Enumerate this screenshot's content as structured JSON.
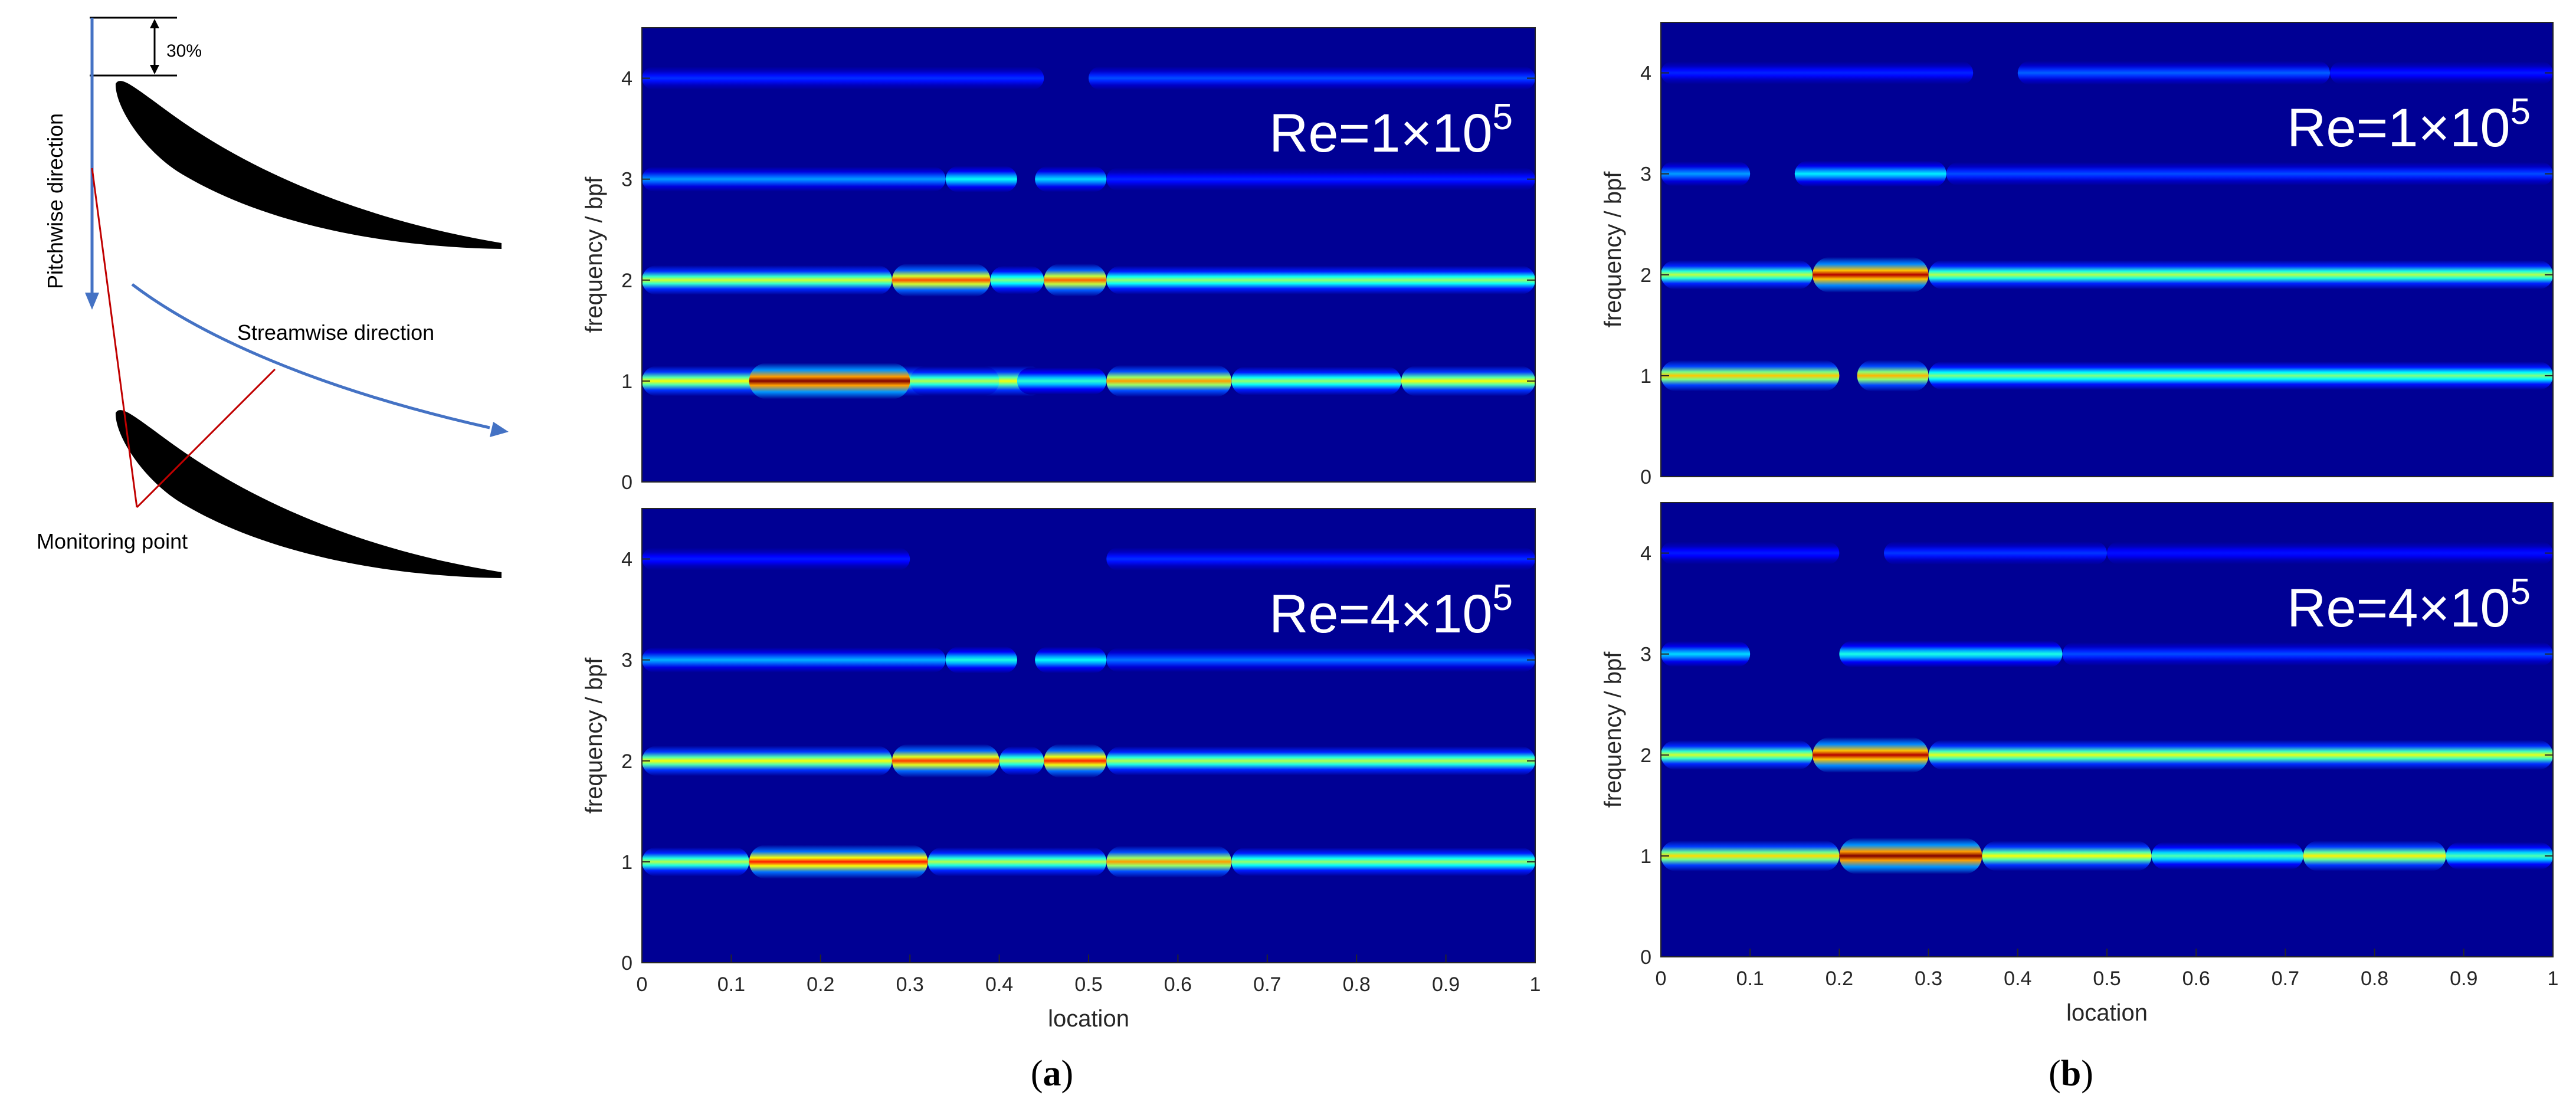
{
  "diagram": {
    "percent_label": "30%",
    "pitchwise_label": "Pitchwise direction",
    "streamwise_label": "Streamwise direction",
    "monitoring_label": "Monitoring point",
    "colors": {
      "blade": "#000000",
      "arrow": "#4472C4",
      "leader": "#C00000",
      "dim": "#000000"
    }
  },
  "chart_data": [
    {
      "type": "heatmap",
      "panel": "a",
      "annotation": "Re=1×10^5",
      "xlabel": "",
      "ylabel": "frequency / bpf",
      "xlim": [
        0,
        1
      ],
      "ylim": [
        0,
        4.5
      ],
      "yticks": [
        0,
        1,
        2,
        3,
        4
      ],
      "colormap": "jet",
      "bands": [
        {
          "freq": 1,
          "segments": [
            [
              0,
              0.45,
              0.62
            ],
            [
              0.12,
              0.3,
              1.0
            ],
            [
              0.3,
              0.4,
              0.55
            ],
            [
              0.42,
              0.52,
              0.42
            ],
            [
              0.52,
              0.66,
              0.72
            ],
            [
              0.66,
              0.85,
              0.52
            ],
            [
              0.85,
              1,
              0.62
            ]
          ]
        },
        {
          "freq": 2,
          "segments": [
            [
              0,
              0.28,
              0.58
            ],
            [
              0.28,
              0.39,
              0.8
            ],
            [
              0.39,
              0.45,
              0.5
            ],
            [
              0.45,
              0.52,
              0.78
            ],
            [
              0.52,
              1,
              0.52
            ]
          ]
        },
        {
          "freq": 3,
          "segments": [
            [
              0,
              0.34,
              0.28
            ],
            [
              0.34,
              0.42,
              0.38
            ],
            [
              0.44,
              0.52,
              0.34
            ],
            [
              0.52,
              1,
              0.16
            ]
          ]
        },
        {
          "freq": 4,
          "segments": [
            [
              0,
              0.45,
              0.17
            ],
            [
              0.5,
              1,
              0.2
            ]
          ]
        }
      ]
    },
    {
      "type": "heatmap",
      "panel": "a",
      "annotation": "Re=4×10^5",
      "xlabel": "location",
      "ylabel": "frequency / bpf",
      "xlim": [
        0,
        1
      ],
      "ylim": [
        0,
        4.5
      ],
      "xticks": [
        "0",
        "0.1",
        "0.2",
        "0.3",
        "0.4",
        "0.5",
        "0.6",
        "0.7",
        "0.8",
        "0.9",
        "1"
      ],
      "yticks": [
        0,
        1,
        2,
        3,
        4
      ],
      "colormap": "jet",
      "bands": [
        {
          "freq": 1,
          "segments": [
            [
              0,
              0.12,
              0.55
            ],
            [
              0.12,
              0.32,
              0.85
            ],
            [
              0.32,
              0.52,
              0.55
            ],
            [
              0.52,
              0.66,
              0.72
            ],
            [
              0.66,
              1,
              0.52
            ]
          ]
        },
        {
          "freq": 2,
          "segments": [
            [
              0,
              0.28,
              0.62
            ],
            [
              0.28,
              0.4,
              0.82
            ],
            [
              0.4,
              0.45,
              0.55
            ],
            [
              0.45,
              0.52,
              0.84
            ],
            [
              0.52,
              1,
              0.55
            ]
          ]
        },
        {
          "freq": 3,
          "segments": [
            [
              0,
              0.34,
              0.3
            ],
            [
              0.34,
              0.42,
              0.4
            ],
            [
              0.44,
              0.52,
              0.38
            ],
            [
              0.52,
              1,
              0.24
            ]
          ]
        },
        {
          "freq": 4,
          "segments": [
            [
              0,
              0.3,
              0.15
            ],
            [
              0.52,
              1,
              0.17
            ]
          ]
        }
      ]
    },
    {
      "type": "heatmap",
      "panel": "b",
      "annotation": "Re=1×10^5",
      "xlabel": "",
      "ylabel": "frequency / bpf",
      "xlim": [
        0,
        1
      ],
      "ylim": [
        0,
        4.5
      ],
      "yticks": [
        0,
        1,
        2,
        3,
        4
      ],
      "colormap": "jet",
      "bands": [
        {
          "freq": 1,
          "segments": [
            [
              0,
              0.2,
              0.68
            ],
            [
              0.22,
              0.3,
              0.7
            ],
            [
              0.3,
              1,
              0.5
            ]
          ]
        },
        {
          "freq": 2,
          "segments": [
            [
              0,
              0.17,
              0.56
            ],
            [
              0.17,
              0.3,
              0.95
            ],
            [
              0.3,
              1,
              0.55
            ]
          ]
        },
        {
          "freq": 3,
          "segments": [
            [
              0,
              0.1,
              0.28
            ],
            [
              0.15,
              0.32,
              0.36
            ],
            [
              0.32,
              1,
              0.2
            ]
          ]
        },
        {
          "freq": 4,
          "segments": [
            [
              0,
              0.35,
              0.16
            ],
            [
              0.4,
              0.75,
              0.22
            ],
            [
              0.75,
              1,
              0.15
            ]
          ]
        }
      ]
    },
    {
      "type": "heatmap",
      "panel": "b",
      "annotation": "Re=4×10^5",
      "xlabel": "location",
      "ylabel": "frequency / bpf",
      "xlim": [
        0,
        1
      ],
      "ylim": [
        0,
        4.5
      ],
      "xticks": [
        "0",
        "0.1",
        "0.2",
        "0.3",
        "0.4",
        "0.5",
        "0.6",
        "0.7",
        "0.8",
        "0.9",
        "1"
      ],
      "yticks": [
        0,
        1,
        2,
        3,
        4
      ],
      "colormap": "jet",
      "bands": [
        {
          "freq": 1,
          "segments": [
            [
              0,
              0.2,
              0.66
            ],
            [
              0.2,
              0.36,
              1.0
            ],
            [
              0.36,
              0.55,
              0.62
            ],
            [
              0.55,
              0.72,
              0.45
            ],
            [
              0.72,
              0.88,
              0.64
            ],
            [
              0.88,
              1,
              0.45
            ]
          ]
        },
        {
          "freq": 2,
          "segments": [
            [
              0,
              0.17,
              0.58
            ],
            [
              0.17,
              0.3,
              0.95
            ],
            [
              0.3,
              1,
              0.6
            ]
          ]
        },
        {
          "freq": 3,
          "segments": [
            [
              0,
              0.1,
              0.34
            ],
            [
              0.2,
              0.45,
              0.4
            ],
            [
              0.45,
              1,
              0.2
            ]
          ]
        },
        {
          "freq": 4,
          "segments": [
            [
              0,
              0.2,
              0.15
            ],
            [
              0.25,
              0.5,
              0.18
            ],
            [
              0.5,
              1,
              0.14
            ]
          ]
        }
      ]
    }
  ],
  "panel_labels": {
    "a": {
      "open": "(",
      "letter": "a",
      "close": ")"
    },
    "b": {
      "open": "(",
      "letter": "b",
      "close": ")"
    }
  }
}
